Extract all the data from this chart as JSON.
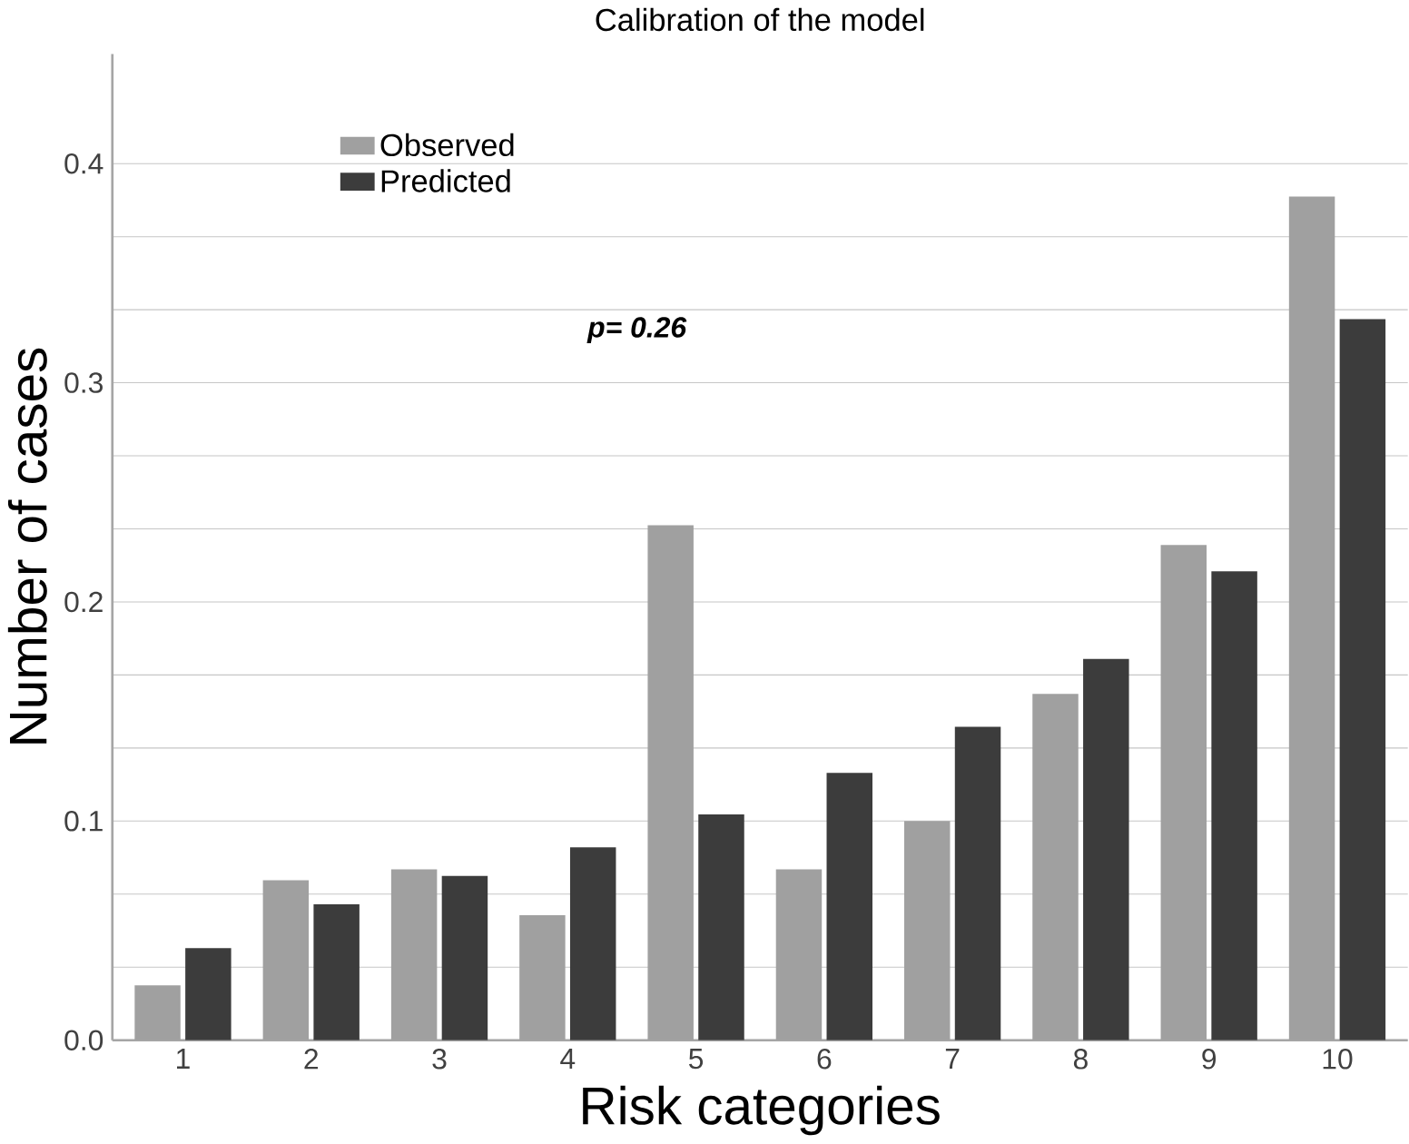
{
  "chart_data": {
    "type": "bar",
    "title": "Calibration of the model",
    "xlabel": "Risk categories",
    "ylabel": "Number of cases",
    "categories": [
      "1",
      "2",
      "3",
      "4",
      "5",
      "6",
      "7",
      "8",
      "9",
      "10"
    ],
    "series": [
      {
        "name": "Observed",
        "color": "#a0a0a0",
        "values": [
          0.025,
          0.073,
          0.078,
          0.057,
          0.235,
          0.078,
          0.1,
          0.158,
          0.226,
          0.385
        ]
      },
      {
        "name": "Predicted",
        "color": "#3c3c3c",
        "values": [
          0.042,
          0.062,
          0.075,
          0.088,
          0.103,
          0.122,
          0.143,
          0.174,
          0.214,
          0.329
        ]
      }
    ],
    "ylim": [
      0,
      0.45
    ],
    "yticks": [
      {
        "value": 0,
        "label": "0.0"
      },
      0.1,
      0.2,
      0.3,
      0.4
    ],
    "grid": "y",
    "legend": "top left",
    "annotations": [
      "p= 0.26"
    ]
  }
}
